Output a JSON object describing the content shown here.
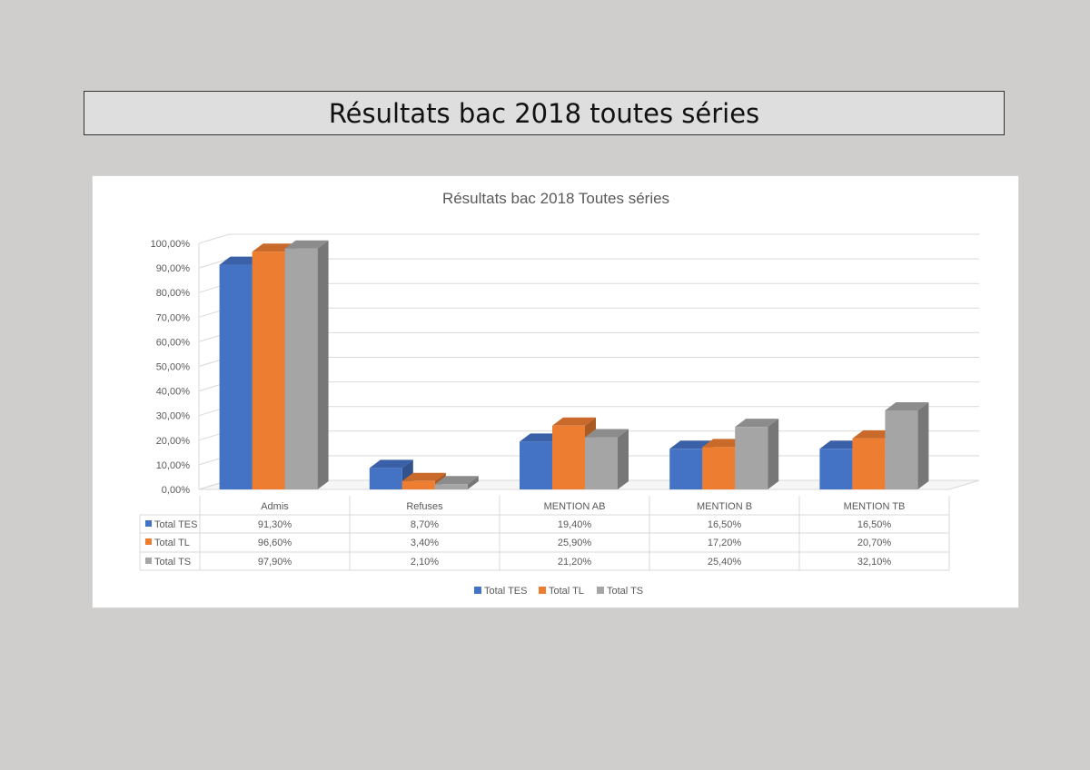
{
  "page": {
    "title": "Résultats bac 2018 toutes séries"
  },
  "chart_data": {
    "type": "bar",
    "title": "Résultats bac 2018 Toutes séries",
    "categories": [
      "Admis",
      "Refuses",
      "MENTION AB",
      "MENTION B",
      "MENTION TB"
    ],
    "series": [
      {
        "name": "Total TES",
        "values": [
          91.3,
          8.7,
          19.4,
          16.5,
          16.5
        ],
        "labels": [
          "91,30%",
          "8,70%",
          "19,40%",
          "16,50%",
          "16,50%"
        ],
        "color": "#4472c4"
      },
      {
        "name": "Total TL",
        "values": [
          96.6,
          3.4,
          25.9,
          17.2,
          20.7
        ],
        "labels": [
          "96,60%",
          "3,40%",
          "25,90%",
          "17,20%",
          "20,70%"
        ],
        "color": "#ed7d31"
      },
      {
        "name": "Total TS",
        "values": [
          97.9,
          2.1,
          21.2,
          25.4,
          32.1
        ],
        "labels": [
          "97,90%",
          "2,10%",
          "21,20%",
          "25,40%",
          "32,10%"
        ],
        "color": "#a5a5a5"
      }
    ],
    "y_ticks": [
      "0,00%",
      "10,00%",
      "20,00%",
      "30,00%",
      "40,00%",
      "50,00%",
      "60,00%",
      "70,00%",
      "80,00%",
      "90,00%",
      "100,00%"
    ],
    "ylim": [
      0,
      100
    ],
    "grid": true,
    "three_d": true,
    "data_table": true,
    "legend_position": "bottom"
  }
}
